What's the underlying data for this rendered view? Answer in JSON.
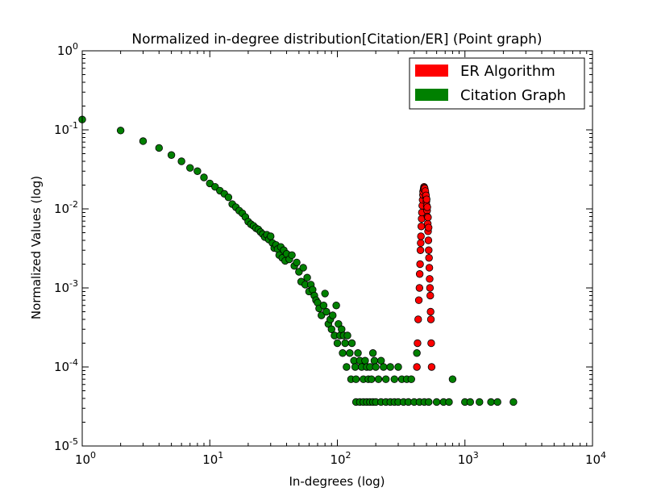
{
  "chart_data": {
    "type": "scatter",
    "title": "Normalized in-degree distribution[Citation/ER] (Point graph)",
    "xlabel": "In-degrees (log)",
    "ylabel": "Normalized Values (log)",
    "xscale": "log",
    "yscale": "log",
    "xlim": [
      1,
      10000
    ],
    "ylim": [
      1e-05,
      1
    ],
    "grid": false,
    "legend_position": "top-right",
    "xticks": [
      {
        "value": 1,
        "base": "10",
        "exp": "0"
      },
      {
        "value": 10,
        "base": "10",
        "exp": "1"
      },
      {
        "value": 100,
        "base": "10",
        "exp": "2"
      },
      {
        "value": 1000,
        "base": "10",
        "exp": "3"
      },
      {
        "value": 10000,
        "base": "10",
        "exp": "4"
      }
    ],
    "yticks": [
      {
        "value": 1e-05,
        "base": "10",
        "exp": "-5"
      },
      {
        "value": 0.0001,
        "base": "10",
        "exp": "-4"
      },
      {
        "value": 0.001,
        "base": "10",
        "exp": "-3"
      },
      {
        "value": 0.01,
        "base": "10",
        "exp": "-2"
      },
      {
        "value": 0.1,
        "base": "10",
        "exp": "-1"
      },
      {
        "value": 1,
        "base": "10",
        "exp": "0"
      }
    ],
    "series": [
      {
        "name": "Citation Graph",
        "color": "#008000",
        "points": [
          [
            1,
            0.135
          ],
          [
            2,
            0.098
          ],
          [
            3,
            0.072
          ],
          [
            4,
            0.059
          ],
          [
            5,
            0.048
          ],
          [
            6,
            0.04
          ],
          [
            7,
            0.033
          ],
          [
            8,
            0.03
          ],
          [
            9,
            0.025
          ],
          [
            10,
            0.021
          ],
          [
            11,
            0.019
          ],
          [
            12,
            0.017
          ],
          [
            13,
            0.0155
          ],
          [
            14,
            0.014
          ],
          [
            15,
            0.0115
          ],
          [
            16,
            0.0105
          ],
          [
            17,
            0.0095
          ],
          [
            18,
            0.0088
          ],
          [
            19,
            0.0079
          ],
          [
            20,
            0.0069
          ],
          [
            21,
            0.0064
          ],
          [
            22,
            0.0061
          ],
          [
            23,
            0.0057
          ],
          [
            24,
            0.0055
          ],
          [
            25,
            0.0051
          ],
          [
            26,
            0.0048
          ],
          [
            27,
            0.0044
          ],
          [
            28,
            0.0047
          ],
          [
            29,
            0.0041
          ],
          [
            30,
            0.0045
          ],
          [
            31,
            0.0037
          ],
          [
            32,
            0.0032
          ],
          [
            33,
            0.0035
          ],
          [
            34,
            0.0031
          ],
          [
            35,
            0.0026
          ],
          [
            36,
            0.0033
          ],
          [
            37,
            0.0024
          ],
          [
            38,
            0.003
          ],
          [
            39,
            0.0022
          ],
          [
            40,
            0.0027
          ],
          [
            42,
            0.0023
          ],
          [
            44,
            0.0026
          ],
          [
            46,
            0.0019
          ],
          [
            48,
            0.0021
          ],
          [
            50,
            0.0016
          ],
          [
            52,
            0.0012
          ],
          [
            54,
            0.0018
          ],
          [
            56,
            0.0011
          ],
          [
            58,
            0.00135
          ],
          [
            60,
            0.0009
          ],
          [
            62,
            0.0011
          ],
          [
            64,
            0.00095
          ],
          [
            66,
            0.0008
          ],
          [
            68,
            0.0007
          ],
          [
            70,
            0.00065
          ],
          [
            72,
            0.00055
          ],
          [
            75,
            0.00045
          ],
          [
            78,
            0.0006
          ],
          [
            80,
            0.00085
          ],
          [
            82,
            0.0005
          ],
          [
            85,
            0.00035
          ],
          [
            88,
            0.0004
          ],
          [
            90,
            0.0003
          ],
          [
            92,
            0.00045
          ],
          [
            95,
            0.00025
          ],
          [
            98,
            0.0006
          ],
          [
            100,
            0.0002
          ],
          [
            102,
            0.00035
          ],
          [
            105,
            0.00025
          ],
          [
            108,
            0.0003
          ],
          [
            110,
            0.00015
          ],
          [
            112,
            0.00025
          ],
          [
            115,
            0.0002
          ],
          [
            118,
            0.0001
          ],
          [
            120,
            0.00025
          ],
          [
            125,
            0.00015
          ],
          [
            128,
            7e-05
          ],
          [
            130,
            0.0002
          ],
          [
            135,
            0.00012
          ],
          [
            138,
            0.0001
          ],
          [
            140,
            7e-05
          ],
          [
            145,
            0.00015
          ],
          [
            150,
            0.00012
          ],
          [
            155,
            0.0001
          ],
          [
            160,
            7e-05
          ],
          [
            165,
            0.00012
          ],
          [
            170,
            0.0001
          ],
          [
            175,
            7e-05
          ],
          [
            180,
            0.0001
          ],
          [
            185,
            7e-05
          ],
          [
            190,
            0.00015
          ],
          [
            195,
            0.00012
          ],
          [
            200,
            0.0001
          ],
          [
            210,
            7e-05
          ],
          [
            220,
            0.00012
          ],
          [
            230,
            0.0001
          ],
          [
            240,
            7e-05
          ],
          [
            260,
            0.0001
          ],
          [
            280,
            7e-05
          ],
          [
            300,
            0.0001
          ],
          [
            320,
            7e-05
          ],
          [
            350,
            7e-05
          ],
          [
            380,
            7e-05
          ],
          [
            140,
            3.6e-05
          ],
          [
            150,
            3.6e-05
          ],
          [
            160,
            3.6e-05
          ],
          [
            170,
            3.6e-05
          ],
          [
            180,
            3.6e-05
          ],
          [
            190,
            3.6e-05
          ],
          [
            200,
            3.6e-05
          ],
          [
            220,
            3.6e-05
          ],
          [
            240,
            3.6e-05
          ],
          [
            260,
            3.6e-05
          ],
          [
            280,
            3.6e-05
          ],
          [
            300,
            3.6e-05
          ],
          [
            330,
            3.6e-05
          ],
          [
            360,
            3.6e-05
          ],
          [
            400,
            3.6e-05
          ],
          [
            440,
            3.6e-05
          ],
          [
            480,
            3.6e-05
          ],
          [
            520,
            3.6e-05
          ],
          [
            600,
            3.6e-05
          ],
          [
            680,
            3.6e-05
          ],
          [
            750,
            3.6e-05
          ],
          [
            1000,
            3.6e-05
          ],
          [
            1100,
            3.6e-05
          ],
          [
            1300,
            3.6e-05
          ],
          [
            1600,
            3.6e-05
          ],
          [
            1800,
            3.6e-05
          ],
          [
            2400,
            3.6e-05
          ],
          [
            800,
            7e-05
          ],
          [
            420,
            0.00015
          ]
        ]
      },
      {
        "name": "ER Algorithm",
        "color": "#ff0000",
        "points": [
          [
            420,
            0.0001
          ],
          [
            425,
            0.0002
          ],
          [
            430,
            0.0004
          ],
          [
            435,
            0.0007
          ],
          [
            440,
            0.001
          ],
          [
            442,
            0.0015
          ],
          [
            445,
            0.002
          ],
          [
            448,
            0.003
          ],
          [
            450,
            0.0037
          ],
          [
            452,
            0.0045
          ],
          [
            455,
            0.006
          ],
          [
            458,
            0.0075
          ],
          [
            460,
            0.009
          ],
          [
            463,
            0.011
          ],
          [
            466,
            0.013
          ],
          [
            469,
            0.015
          ],
          [
            472,
            0.017
          ],
          [
            475,
            0.018
          ],
          [
            478,
            0.019
          ],
          [
            481,
            0.0185
          ],
          [
            484,
            0.0178
          ],
          [
            487,
            0.017
          ],
          [
            490,
            0.016
          ],
          [
            493,
            0.015
          ],
          [
            496,
            0.014
          ],
          [
            499,
            0.0125
          ],
          [
            502,
            0.011
          ],
          [
            505,
            0.0095
          ],
          [
            508,
            0.008
          ],
          [
            511,
            0.0065
          ],
          [
            514,
            0.0052
          ],
          [
            517,
            0.004
          ],
          [
            520,
            0.003
          ],
          [
            523,
            0.0024
          ],
          [
            526,
            0.0018
          ],
          [
            529,
            0.0013
          ],
          [
            532,
            0.001
          ],
          [
            535,
            0.0008
          ],
          [
            538,
            0.0005
          ],
          [
            541,
            0.0004
          ],
          [
            544,
            0.0002
          ],
          [
            548,
            0.0001
          ],
          [
            470,
            0.0165
          ],
          [
            476,
            0.0178
          ],
          [
            483,
            0.0182
          ],
          [
            489,
            0.0168
          ],
          [
            495,
            0.0148
          ],
          [
            501,
            0.0132
          ],
          [
            507,
            0.0105
          ],
          [
            513,
            0.0078
          ],
          [
            519,
            0.0058
          ]
        ]
      }
    ]
  }
}
